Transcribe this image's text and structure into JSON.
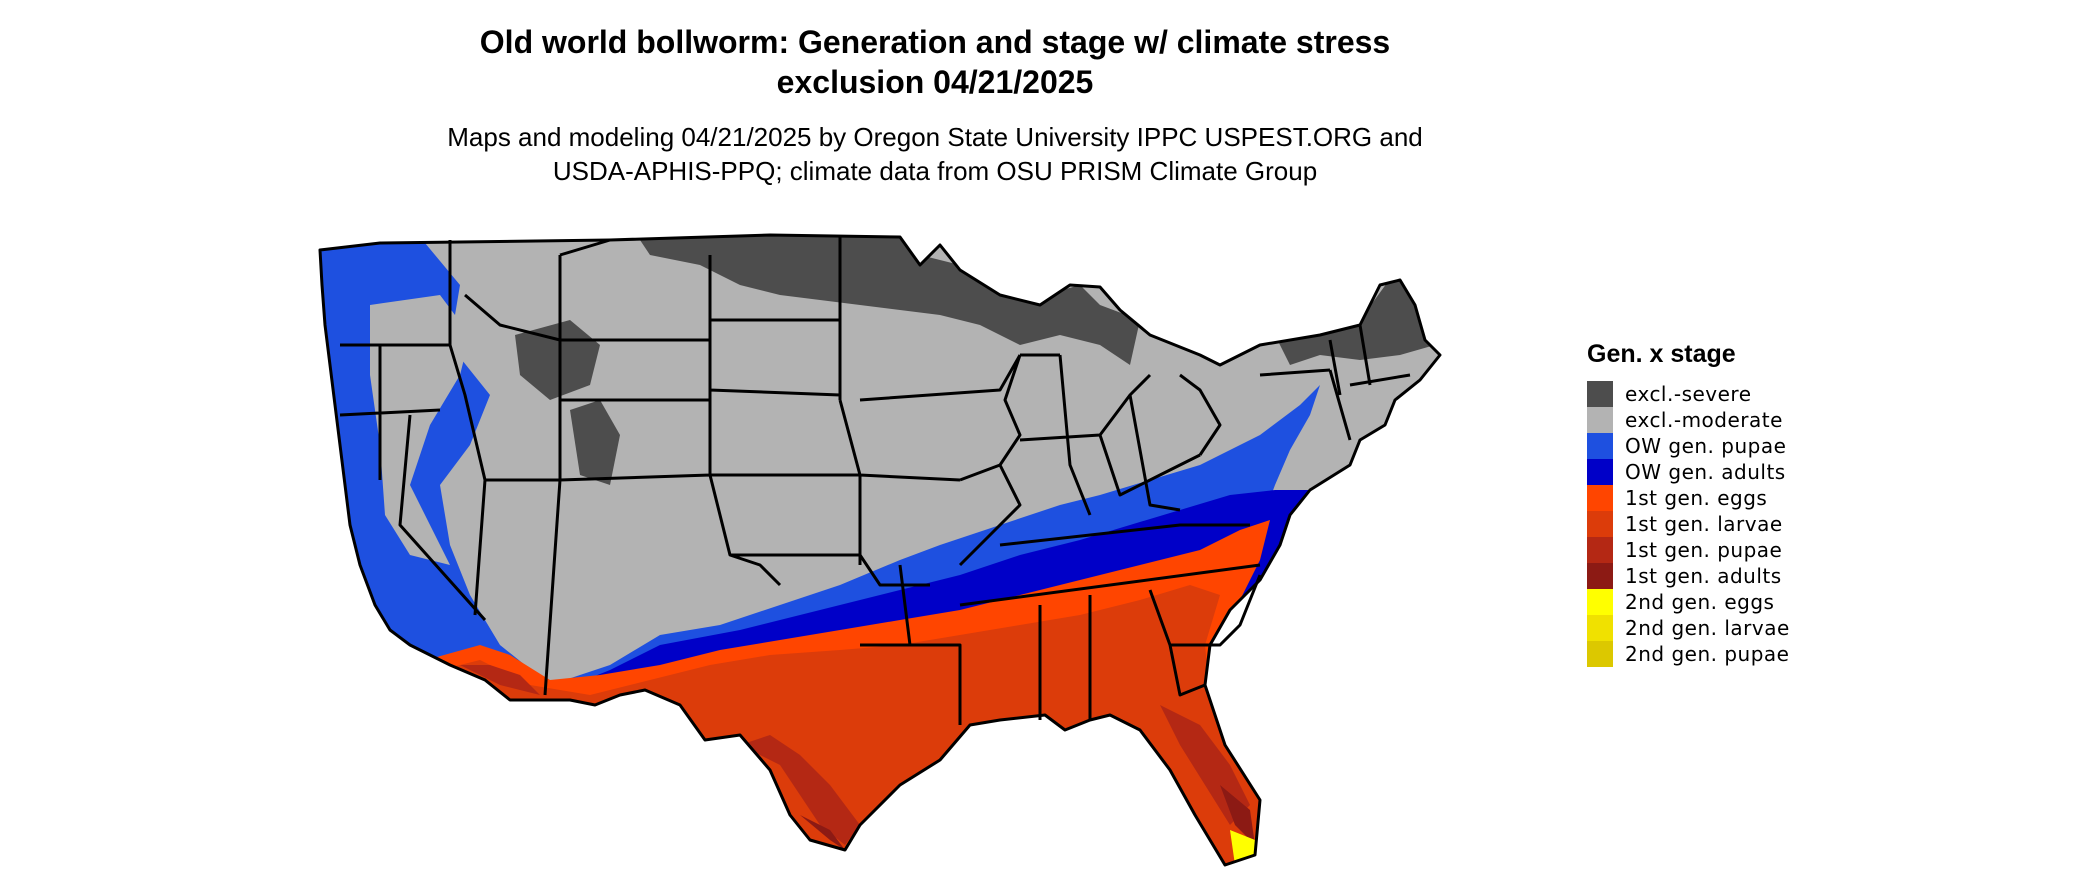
{
  "title_line1": "Old world bollworm: Generation and stage w/ climate stress",
  "title_line2": "exclusion 04/21/2025",
  "subtitle_line1": "Maps and modeling 04/21/2025 by Oregon State University IPPC USPEST.ORG and",
  "subtitle_line2": "USDA-APHIS-PPQ; climate data from OSU PRISM Climate Group",
  "legend": {
    "title": "Gen. x stage",
    "items": [
      {
        "label": "excl.-severe",
        "color": "#4d4d4d"
      },
      {
        "label": "excl.-moderate",
        "color": "#b3b3b3"
      },
      {
        "label": "OW gen. pupae",
        "color": "#1e50e0"
      },
      {
        "label": "OW gen. adults",
        "color": "#0000c8"
      },
      {
        "label": "1st gen. eggs",
        "color": "#ff4500"
      },
      {
        "label": "1st gen. larvae",
        "color": "#dc3c0a"
      },
      {
        "label": "1st gen. pupae",
        "color": "#b42814"
      },
      {
        "label": "1st gen. adults",
        "color": "#8c1a14"
      },
      {
        "label": "2nd gen. eggs",
        "color": "#ffff00"
      },
      {
        "label": "2nd gen. larvae",
        "color": "#f0e100"
      },
      {
        "label": "2nd gen. pupae",
        "color": "#dcc800"
      }
    ]
  },
  "map_colors": {
    "excl_severe": "#4d4d4d",
    "excl_moderate": "#b3b3b3",
    "ow_pupae": "#1e50e0",
    "ow_adults": "#0000c8",
    "gen1_eggs": "#ff4500",
    "gen1_larvae": "#dc3c0a",
    "gen1_pupae": "#b42814",
    "gen1_adults": "#8c1a14",
    "gen2_eggs": "#ffff00"
  }
}
